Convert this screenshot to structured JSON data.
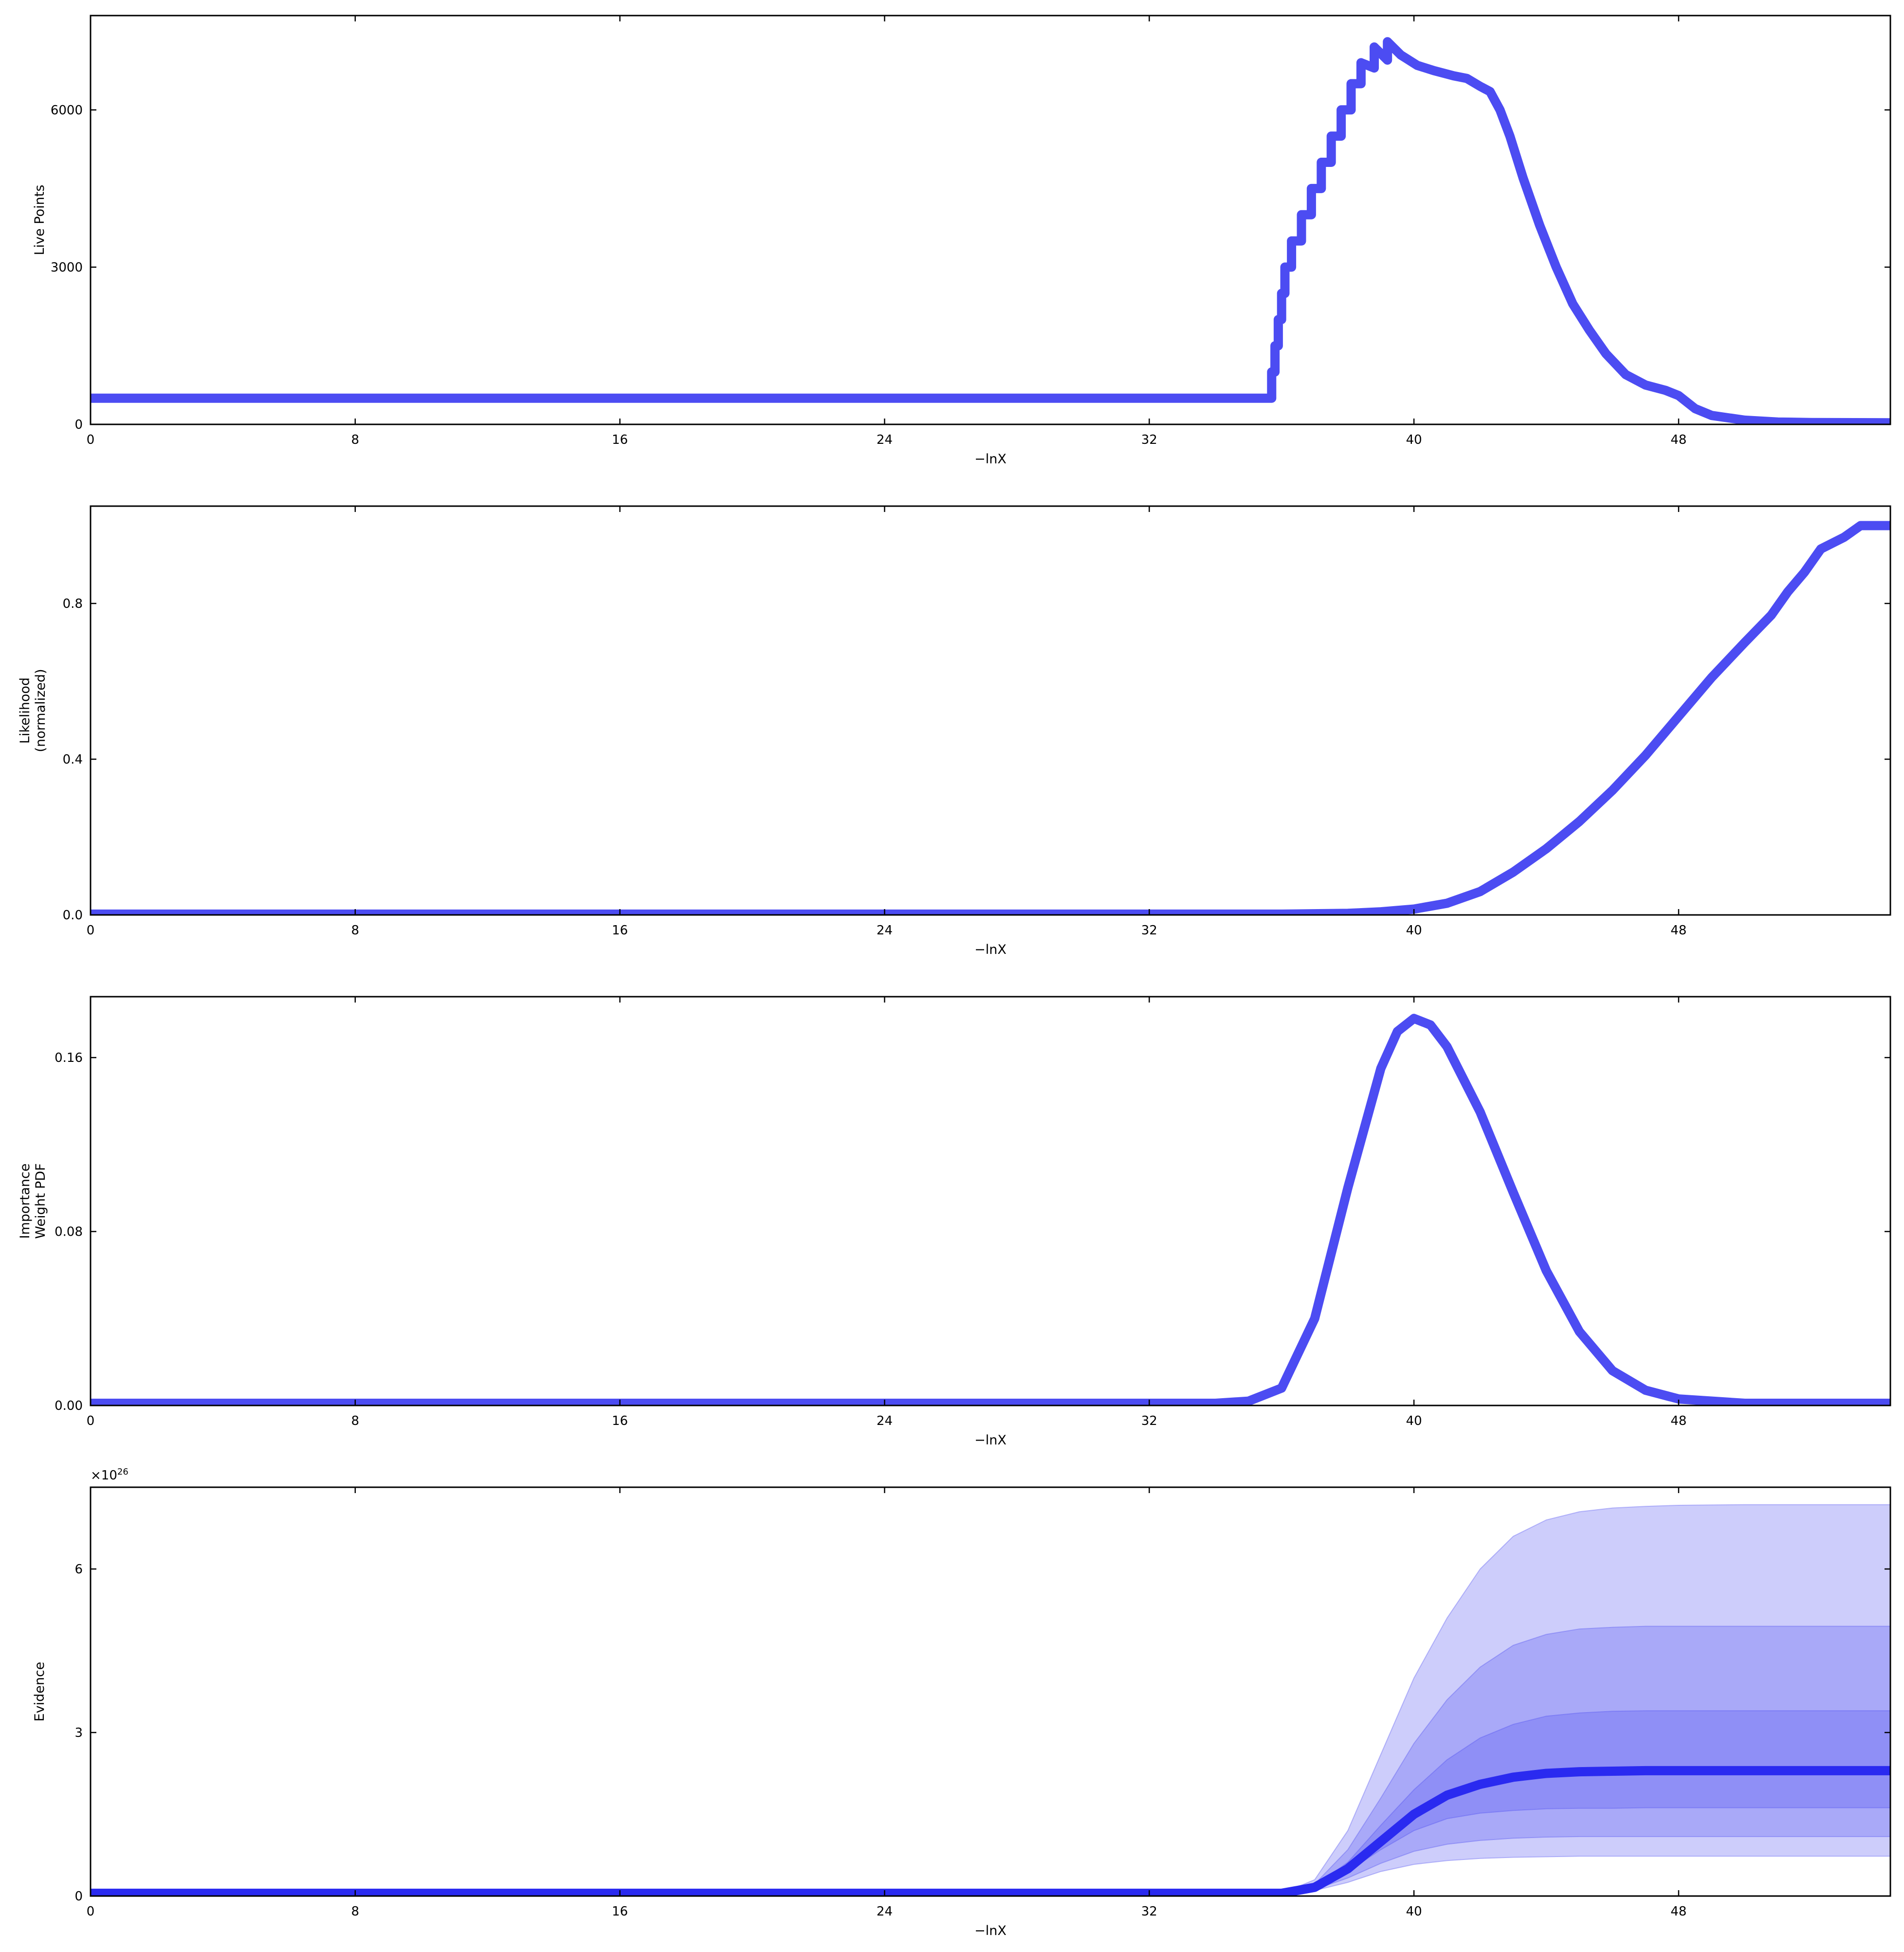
{
  "chart_data": [
    {
      "type": "line",
      "xlabel": "−lnX",
      "ylabel": [
        "Live Points"
      ],
      "xlim": [
        0,
        54.4
      ],
      "ylim": [
        0,
        7800
      ],
      "xticks": [
        0,
        8,
        16,
        24,
        32,
        40,
        48
      ],
      "xtick_labels": [
        "0",
        "8",
        "16",
        "24",
        "32",
        "40",
        "48"
      ],
      "yticks": [
        0,
        3000,
        6000
      ],
      "ytick_labels": [
        "0",
        "3000",
        "6000"
      ],
      "grid": false,
      "series": [
        {
          "color": "#4c4cf2",
          "x": [
            0,
            35.7,
            35.7,
            35.8,
            35.8,
            35.9,
            35.9,
            36.0,
            36.0,
            36.1,
            36.1,
            36.3,
            36.3,
            36.6,
            36.6,
            36.9,
            36.9,
            37.2,
            37.2,
            37.5,
            37.5,
            37.8,
            37.8,
            38.1,
            38.1,
            38.4,
            38.4,
            38.8,
            38.8,
            39.2,
            39.2,
            39.6,
            40.1,
            40.6,
            41.2,
            41.6,
            42.0,
            42.3,
            42.6,
            42.9,
            43.3,
            43.8,
            44.3,
            44.8,
            45.3,
            45.8,
            46.4,
            47.0,
            47.6,
            48.0,
            48.5,
            49.0,
            50.0,
            51.0,
            52.0,
            54.4
          ],
          "y": [
            500,
            500,
            1000,
            1000,
            1500,
            1500,
            2000,
            2000,
            2500,
            2500,
            3000,
            3000,
            3500,
            3500,
            4000,
            4000,
            4500,
            4500,
            5000,
            5000,
            5500,
            5500,
            6000,
            6000,
            6500,
            6500,
            6900,
            6800,
            7200,
            6950,
            7300,
            7050,
            6850,
            6750,
            6650,
            6600,
            6450,
            6350,
            6000,
            5500,
            4700,
            3800,
            3000,
            2300,
            1800,
            1350,
            950,
            750,
            650,
            550,
            300,
            170,
            80,
            45,
            35,
            30
          ]
        }
      ]
    },
    {
      "type": "line",
      "xlabel": "−lnX",
      "ylabel": [
        "Likelihood",
        "(normalized)"
      ],
      "xlim": [
        0,
        54.4
      ],
      "ylim": [
        0,
        1.05
      ],
      "xticks": [
        0,
        8,
        16,
        24,
        32,
        40,
        48
      ],
      "xtick_labels": [
        "0",
        "8",
        "16",
        "24",
        "32",
        "40",
        "48"
      ],
      "yticks": [
        0,
        0.4,
        0.8
      ],
      "ytick_labels": [
        "0.0",
        "0.4",
        "0.8"
      ],
      "grid": false,
      "series": [
        {
          "color": "#4c4cf2",
          "x": [
            0,
            36,
            38,
            39,
            40,
            41,
            42,
            43,
            44,
            45,
            46,
            47,
            48,
            49,
            50,
            50.8,
            51.3,
            51.8,
            52.3,
            53.0,
            53.5,
            54.4
          ],
          "y": [
            0.002,
            0.002,
            0.004,
            0.008,
            0.015,
            0.03,
            0.06,
            0.11,
            0.17,
            0.24,
            0.32,
            0.41,
            0.51,
            0.61,
            0.7,
            0.77,
            0.83,
            0.88,
            0.94,
            0.97,
            1.0,
            1.0
          ]
        }
      ]
    },
    {
      "type": "line",
      "xlabel": "−lnX",
      "ylabel": [
        "Importance",
        "Weight PDF"
      ],
      "xlim": [
        0,
        54.4
      ],
      "ylim": [
        0,
        0.188
      ],
      "xticks": [
        0,
        8,
        16,
        24,
        32,
        40,
        48
      ],
      "xtick_labels": [
        "0",
        "8",
        "16",
        "24",
        "32",
        "40",
        "48"
      ],
      "yticks": [
        0,
        0.08,
        0.16
      ],
      "ytick_labels": [
        "0.00",
        "0.08",
        "0.16"
      ],
      "grid": false,
      "series": [
        {
          "color": "#4c4cf2",
          "x": [
            0,
            34,
            35,
            36,
            37,
            38,
            39,
            39.5,
            40,
            40.5,
            41,
            42,
            43,
            44,
            45,
            46,
            47,
            48,
            50,
            52,
            54.4
          ],
          "y": [
            0.001,
            0.001,
            0.002,
            0.008,
            0.04,
            0.1,
            0.155,
            0.172,
            0.178,
            0.175,
            0.165,
            0.135,
            0.098,
            0.062,
            0.034,
            0.016,
            0.007,
            0.003,
            0.001,
            0.001,
            0.001
          ]
        }
      ]
    },
    {
      "type": "area",
      "xlabel": "−lnX",
      "ylabel": [
        "Evidence"
      ],
      "y_multiplier_label": "×10",
      "y_multiplier_exponent": "26",
      "xlim": [
        0,
        54.4
      ],
      "ylim": [
        0,
        7.5
      ],
      "xticks": [
        0,
        8,
        16,
        24,
        32,
        40,
        48
      ],
      "xtick_labels": [
        "0",
        "8",
        "16",
        "24",
        "32",
        "40",
        "48"
      ],
      "yticks": [
        0,
        3,
        6
      ],
      "ytick_labels": [
        "0",
        "3",
        "6"
      ],
      "grid": false,
      "x": [
        0,
        36,
        37,
        38,
        39,
        40,
        41,
        42,
        43,
        44,
        45,
        46,
        47,
        48,
        50,
        52,
        54.4
      ],
      "bands": [
        {
          "color": "#4c4cf2",
          "opacity": 0.28,
          "lower": [
            0.05,
            0.05,
            0.1,
            0.25,
            0.45,
            0.58,
            0.65,
            0.69,
            0.71,
            0.72,
            0.73,
            0.73,
            0.73,
            0.73,
            0.73,
            0.73,
            0.73
          ],
          "upper": [
            0.05,
            0.05,
            0.3,
            1.2,
            2.6,
            4.0,
            5.1,
            6.0,
            6.6,
            6.9,
            7.05,
            7.12,
            7.15,
            7.17,
            7.18,
            7.18,
            7.18
          ]
        },
        {
          "color": "#4c4cf2",
          "opacity": 0.28,
          "lower": [
            0.05,
            0.05,
            0.12,
            0.33,
            0.6,
            0.82,
            0.95,
            1.02,
            1.06,
            1.08,
            1.09,
            1.09,
            1.09,
            1.09,
            1.09,
            1.09,
            1.09
          ],
          "upper": [
            0.05,
            0.05,
            0.22,
            0.85,
            1.8,
            2.8,
            3.6,
            4.2,
            4.6,
            4.8,
            4.9,
            4.93,
            4.95,
            4.95,
            4.95,
            4.95,
            4.95
          ]
        },
        {
          "color": "#4c4cf2",
          "opacity": 0.28,
          "lower": [
            0.05,
            0.05,
            0.15,
            0.45,
            0.85,
            1.2,
            1.42,
            1.52,
            1.57,
            1.6,
            1.61,
            1.61,
            1.62,
            1.62,
            1.62,
            1.62,
            1.62
          ],
          "upper": [
            0.05,
            0.05,
            0.18,
            0.62,
            1.3,
            1.95,
            2.5,
            2.9,
            3.15,
            3.3,
            3.36,
            3.39,
            3.4,
            3.4,
            3.4,
            3.4,
            3.4
          ]
        }
      ],
      "series": [
        {
          "color": "#2a2af0",
          "y": [
            0.05,
            0.05,
            0.16,
            0.5,
            1.0,
            1.5,
            1.85,
            2.05,
            2.18,
            2.25,
            2.28,
            2.29,
            2.3,
            2.3,
            2.3,
            2.3,
            2.3
          ]
        }
      ]
    }
  ]
}
